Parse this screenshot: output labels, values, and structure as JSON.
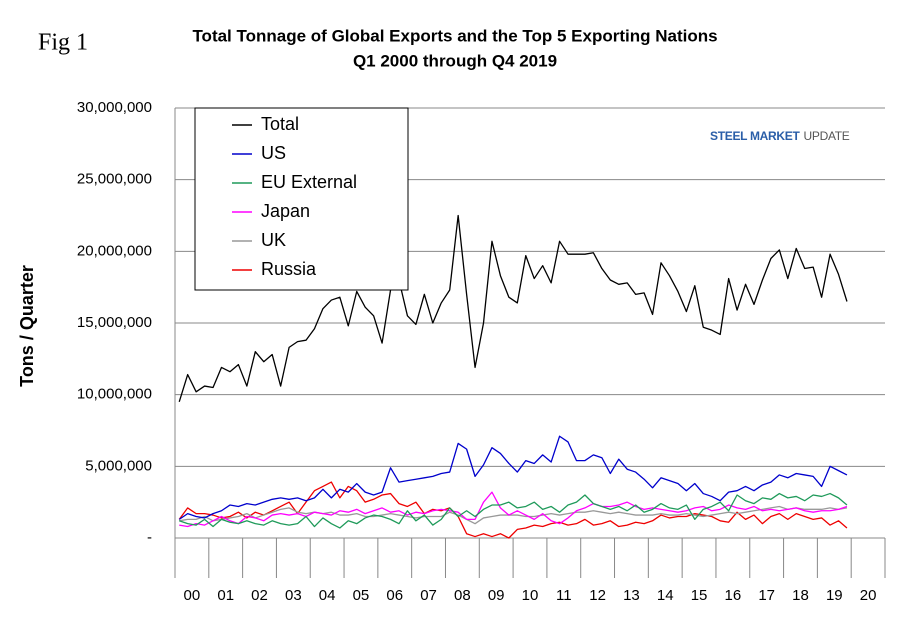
{
  "chart_data": {
    "type": "line",
    "fig_label": "Fig 1",
    "title": "Total Tonnage of Global Exports and the Top 5 Exporting Nations",
    "subtitle": "Q1 2000 through Q4 2019",
    "y_label": "Tons / Quarter",
    "logo": {
      "bold": "STEEL MARKET",
      "light": "UPDATE"
    },
    "categories": [
      "00",
      null,
      null,
      null,
      "01",
      null,
      null,
      null,
      "02",
      null,
      null,
      null,
      "03",
      null,
      null,
      null,
      "04",
      null,
      null,
      null,
      "05",
      null,
      null,
      null,
      "06",
      null,
      null,
      null,
      "07",
      null,
      null,
      null,
      "08",
      null,
      null,
      null,
      "09",
      null,
      null,
      null,
      "10",
      null,
      null,
      null,
      "11",
      null,
      null,
      null,
      "12",
      null,
      null,
      null,
      "13",
      null,
      null,
      null,
      "14",
      null,
      null,
      null,
      "15",
      null,
      null,
      null,
      "16",
      null,
      null,
      null,
      "17",
      null,
      null,
      null,
      "18",
      null,
      null,
      null,
      "19",
      null,
      null,
      null,
      "20",
      null,
      null,
      null
    ],
    "ylim": [
      0,
      30000000
    ],
    "yticks": [
      {
        "value": 0,
        "label": "-"
      },
      {
        "value": 5000000,
        "label": "5,000,000"
      },
      {
        "value": 10000000,
        "label": "10,000,000"
      },
      {
        "value": 15000000,
        "label": "15,000,000"
      },
      {
        "value": 20000000,
        "label": "20,000,000"
      },
      {
        "value": 25000000,
        "label": "25,000,000"
      },
      {
        "value": 30000000,
        "label": "30,000,000"
      }
    ],
    "grid": true,
    "legend": "upper left",
    "series": [
      {
        "name": "Total",
        "color": "#000000",
        "values": [
          9500000,
          11400000,
          10200000,
          10600000,
          10500000,
          11900000,
          11600000,
          12100000,
          10600000,
          13000000,
          12300000,
          12800000,
          10600000,
          13300000,
          13700000,
          13800000,
          14600000,
          16000000,
          16600000,
          16800000,
          14800000,
          17200000,
          16100000,
          15500000,
          13600000,
          17300000,
          18000000,
          15500000,
          14900000,
          17000000,
          15000000,
          16400000,
          17300000,
          22500000,
          17000000,
          11900000,
          15000000,
          20700000,
          18300000,
          16800000,
          16400000,
          19700000,
          18100000,
          19000000,
          17800000,
          20700000,
          19800000,
          19800000,
          19800000,
          19900000,
          18800000,
          18000000,
          17700000,
          17800000,
          17000000,
          17100000,
          15600000,
          19200000,
          18300000,
          17200000,
          15800000,
          17600000,
          14700000,
          14500000,
          14200000,
          18100000,
          15900000,
          17700000,
          16300000,
          18000000,
          19500000,
          20100000,
          18100000,
          20200000,
          18800000,
          18900000,
          16800000,
          19800000,
          18400000,
          16500000,
          null,
          null,
          null,
          null
        ]
      },
      {
        "name": "US",
        "color": "#0000cc",
        "values": [
          1300000,
          1700000,
          1500000,
          1400000,
          1700000,
          1900000,
          2300000,
          2200000,
          2400000,
          2300000,
          2500000,
          2700000,
          2800000,
          2700000,
          2800000,
          2600000,
          2800000,
          3400000,
          2800000,
          3400000,
          3200000,
          3800000,
          3200000,
          3000000,
          3200000,
          4900000,
          3900000,
          4000000,
          4100000,
          4200000,
          4300000,
          4500000,
          4600000,
          6600000,
          6200000,
          4300000,
          5100000,
          6300000,
          5900000,
          5200000,
          4600000,
          5400000,
          5200000,
          5800000,
          5300000,
          7100000,
          6700000,
          5400000,
          5400000,
          5800000,
          5600000,
          4500000,
          5500000,
          4800000,
          4600000,
          4100000,
          3500000,
          4200000,
          4000000,
          3800000,
          3300000,
          3800000,
          3100000,
          2900000,
          2600000,
          3200000,
          3300000,
          3600000,
          3300000,
          3700000,
          3900000,
          4400000,
          4200000,
          4500000,
          4400000,
          4300000,
          3600000,
          5000000,
          4700000,
          4400000,
          null,
          null,
          null,
          null
        ]
      },
      {
        "name": "EU External",
        "color": "#1f9a5a",
        "values": [
          1200000,
          1000000,
          900000,
          1300000,
          800000,
          1300000,
          1100000,
          1000000,
          1200000,
          1000000,
          900000,
          1200000,
          1000000,
          900000,
          1000000,
          1500000,
          800000,
          1400000,
          1000000,
          700000,
          1200000,
          1000000,
          1400000,
          1600000,
          1500000,
          1300000,
          1000000,
          1900000,
          1200000,
          1600000,
          900000,
          1300000,
          2100000,
          1500000,
          1900000,
          1500000,
          2000000,
          2300000,
          2300000,
          2500000,
          2100000,
          2200000,
          2500000,
          2000000,
          2200000,
          1800000,
          2300000,
          2500000,
          3000000,
          2400000,
          2200000,
          2000000,
          2200000,
          1900000,
          2300000,
          1800000,
          2000000,
          2400000,
          2100000,
          2000000,
          2300000,
          1300000,
          2000000,
          2200000,
          2500000,
          1900000,
          3000000,
          2600000,
          2400000,
          2800000,
          2700000,
          3100000,
          2800000,
          2900000,
          2600000,
          3000000,
          2900000,
          3100000,
          2800000,
          2300000,
          null,
          null,
          null,
          null
        ]
      },
      {
        "name": "Japan",
        "color": "#ff00ff",
        "values": [
          900000,
          800000,
          1000000,
          900000,
          1200000,
          1500000,
          1200000,
          1000000,
          1500000,
          1400000,
          1200000,
          1600000,
          1700000,
          1600000,
          1700000,
          1500000,
          1800000,
          1700000,
          1600000,
          1900000,
          1800000,
          2000000,
          1700000,
          1900000,
          2100000,
          1800000,
          1900000,
          1600000,
          1800000,
          1700000,
          1900000,
          2000000,
          1900000,
          1800000,
          1300000,
          1300000,
          2500000,
          3200000,
          2100000,
          1600000,
          1900000,
          1600000,
          1300000,
          1700000,
          1200000,
          1000000,
          1400000,
          1900000,
          2100000,
          2400000,
          2200000,
          2200000,
          2300000,
          2500000,
          2200000,
          2000000,
          2100000,
          2000000,
          1900000,
          1800000,
          1900000,
          2100000,
          2200000,
          1900000,
          2000000,
          2300000,
          2100000,
          2000000,
          2200000,
          1900000,
          2000000,
          1900000,
          2000000,
          2100000,
          1900000,
          1800000,
          1900000,
          1900000,
          2000000,
          2200000,
          null,
          null,
          null,
          null
        ]
      },
      {
        "name": "UK",
        "color": "#999999",
        "values": [
          1200000,
          1300000,
          1300000,
          1500000,
          1200000,
          1300000,
          1400000,
          1500000,
          1700000,
          1400000,
          1600000,
          1800000,
          2000000,
          2100000,
          1800000,
          1700000,
          1800000,
          1700000,
          1800000,
          1600000,
          1600000,
          1700000,
          1500000,
          1500000,
          1600000,
          1700000,
          1600000,
          1500000,
          1400000,
          1500000,
          1500000,
          1500000,
          1800000,
          1600000,
          1300000,
          1000000,
          1400000,
          1500000,
          1600000,
          1600000,
          1600000,
          1500000,
          1500000,
          1600000,
          1700000,
          1600000,
          1700000,
          1800000,
          1800000,
          1900000,
          1800000,
          1700000,
          1800000,
          1700000,
          1600000,
          1600000,
          1600000,
          1700000,
          1600000,
          1600000,
          1700000,
          1600000,
          1500000,
          1600000,
          1700000,
          1800000,
          1700000,
          1800000,
          1900000,
          2000000,
          2100000,
          2200000,
          2000000,
          2100000,
          2000000,
          2000000,
          2000000,
          2100000,
          2000000,
          2100000,
          null,
          null,
          null,
          null
        ]
      },
      {
        "name": "Russia",
        "color": "#ee0000",
        "values": [
          1300000,
          2100000,
          1700000,
          1700000,
          1600000,
          1400000,
          1500000,
          1800000,
          1400000,
          1800000,
          1600000,
          1900000,
          2200000,
          2500000,
          1700000,
          2500000,
          3300000,
          3600000,
          3900000,
          2800000,
          3600000,
          3300000,
          2500000,
          2700000,
          3000000,
          3100000,
          2400000,
          2200000,
          2500000,
          1700000,
          2000000,
          1900000,
          2100000,
          1500000,
          300000,
          100000,
          300000,
          100000,
          300000,
          0,
          600000,
          700000,
          900000,
          800000,
          1000000,
          1100000,
          900000,
          1000000,
          1300000,
          900000,
          1000000,
          1200000,
          800000,
          900000,
          1100000,
          1000000,
          1200000,
          1600000,
          1400000,
          1500000,
          1500000,
          1700000,
          1600000,
          1500000,
          1200000,
          1100000,
          1800000,
          1300000,
          1600000,
          1000000,
          1500000,
          1700000,
          1300000,
          1700000,
          1500000,
          1300000,
          1400000,
          900000,
          1200000,
          700000,
          null,
          null,
          null,
          null
        ]
      }
    ]
  }
}
